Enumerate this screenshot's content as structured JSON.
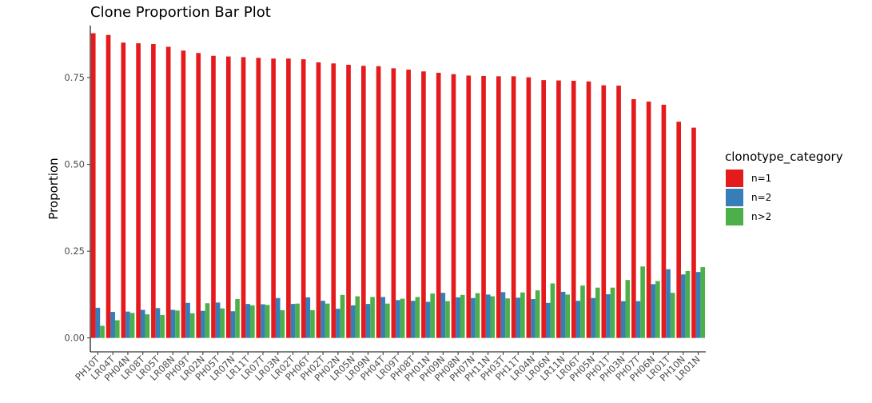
{
  "chart_data": {
    "type": "bar",
    "title": "Clone Proportion Bar Plot",
    "xlabel": "",
    "ylabel": "Proportion",
    "ylim": [
      -0.04,
      0.9
    ],
    "yticks": [
      0,
      0.25,
      0.5,
      0.75
    ],
    "ytick_labels": [
      "0.00",
      "0.25",
      "0.50",
      "0.75"
    ],
    "grid": false,
    "legend": {
      "title": "clonotype_category",
      "position": "right"
    },
    "categories": [
      "PH10T",
      "LR04T",
      "PH04N",
      "LR08T",
      "LR05T",
      "LR08N",
      "PH09T",
      "LR02N",
      "PH05T",
      "LR07N",
      "LR11T",
      "LR07T",
      "LR03N",
      "LR02T",
      "PH06T",
      "PH02T",
      "PH02N",
      "LR05N",
      "LR09N",
      "PH04T",
      "LR09T",
      "PH08T",
      "PH01N",
      "PH09N",
      "PH08N",
      "PH07N",
      "PH11N",
      "PH03T",
      "PH11T",
      "LR04N",
      "LR06N",
      "LR11N",
      "LR06T",
      "PH05N",
      "PH01T",
      "PH03N",
      "PH07T",
      "PH06N",
      "LR01T",
      "PH10N",
      "LR01N"
    ],
    "series": [
      {
        "name": "n=1",
        "color": "#E41A1C",
        "values": [
          0.878,
          0.873,
          0.851,
          0.849,
          0.847,
          0.839,
          0.828,
          0.821,
          0.813,
          0.811,
          0.809,
          0.807,
          0.805,
          0.805,
          0.803,
          0.794,
          0.791,
          0.787,
          0.784,
          0.783,
          0.777,
          0.773,
          0.768,
          0.764,
          0.76,
          0.756,
          0.755,
          0.754,
          0.754,
          0.751,
          0.743,
          0.742,
          0.741,
          0.739,
          0.728,
          0.727,
          0.688,
          0.681,
          0.672,
          0.623,
          0.606
        ]
      },
      {
        "name": "n=2",
        "color": "#377EB8",
        "values": [
          0.087,
          0.075,
          0.076,
          0.081,
          0.086,
          0.081,
          0.101,
          0.078,
          0.102,
          0.077,
          0.098,
          0.097,
          0.115,
          0.098,
          0.117,
          0.107,
          0.084,
          0.094,
          0.098,
          0.118,
          0.109,
          0.107,
          0.104,
          0.13,
          0.117,
          0.115,
          0.125,
          0.132,
          0.116,
          0.112,
          0.101,
          0.133,
          0.107,
          0.115,
          0.126,
          0.106,
          0.106,
          0.155,
          0.198,
          0.183,
          0.19
        ]
      },
      {
        "name": "n>2",
        "color": "#4DAF4A",
        "values": [
          0.035,
          0.051,
          0.072,
          0.068,
          0.066,
          0.079,
          0.071,
          0.1,
          0.085,
          0.112,
          0.094,
          0.095,
          0.08,
          0.099,
          0.08,
          0.099,
          0.124,
          0.12,
          0.118,
          0.099,
          0.113,
          0.118,
          0.128,
          0.106,
          0.124,
          0.129,
          0.12,
          0.114,
          0.131,
          0.137,
          0.157,
          0.125,
          0.151,
          0.145,
          0.145,
          0.167,
          0.206,
          0.164,
          0.13,
          0.193,
          0.204
        ]
      }
    ]
  }
}
